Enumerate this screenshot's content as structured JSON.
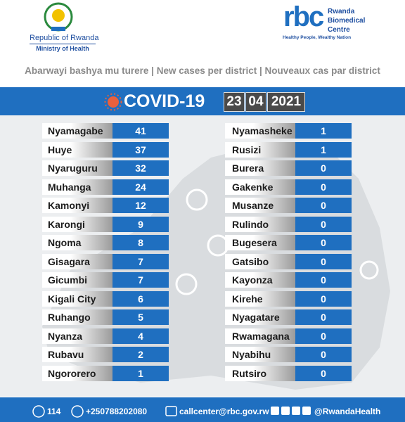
{
  "header": {
    "country": "Republic of Rwanda",
    "ministry": "Ministry of Health",
    "org_logo": "rbc",
    "org_name": [
      "Rwanda",
      "Biomedical",
      "Centre"
    ],
    "slogan": "Healthy People, Wealthy Nation"
  },
  "subtitle": "Abarwayi bashya mu turere | New cases per district | Nouveaux cas par district",
  "title": "COVID-19",
  "date": [
    "23",
    "04",
    "2021"
  ],
  "table": {
    "left": [
      [
        "Nyamagabe",
        41
      ],
      [
        "Huye",
        37
      ],
      [
        "Nyaruguru",
        32
      ],
      [
        "Muhanga",
        24
      ],
      [
        "Kamonyi",
        12
      ],
      [
        "Karongi",
        9
      ],
      [
        "Ngoma",
        8
      ],
      [
        "Gisagara",
        7
      ],
      [
        "Gicumbi",
        7
      ],
      [
        "Kigali City",
        6
      ],
      [
        "Ruhango",
        5
      ],
      [
        "Nyanza",
        4
      ],
      [
        "Rubavu",
        2
      ],
      [
        "Ngororero",
        1
      ]
    ],
    "right": [
      [
        "Nyamasheke",
        1
      ],
      [
        "Rusizi",
        1
      ],
      [
        "Burera",
        0
      ],
      [
        "Gakenke",
        0
      ],
      [
        "Musanze",
        0
      ],
      [
        "Rulindo",
        0
      ],
      [
        "Bugesera",
        0
      ],
      [
        "Gatsibo",
        0
      ],
      [
        "Kayonza",
        0
      ],
      [
        "Kirehe",
        0
      ],
      [
        "Nyagatare",
        0
      ],
      [
        "Rwamagana",
        0
      ],
      [
        "Nyabihu",
        0
      ],
      [
        "Rutsiro",
        0
      ]
    ]
  },
  "footer": [
    "114",
    "+250788202080",
    "callcenter@rbc.gov.rw",
    "@RwandaHealth"
  ]
}
